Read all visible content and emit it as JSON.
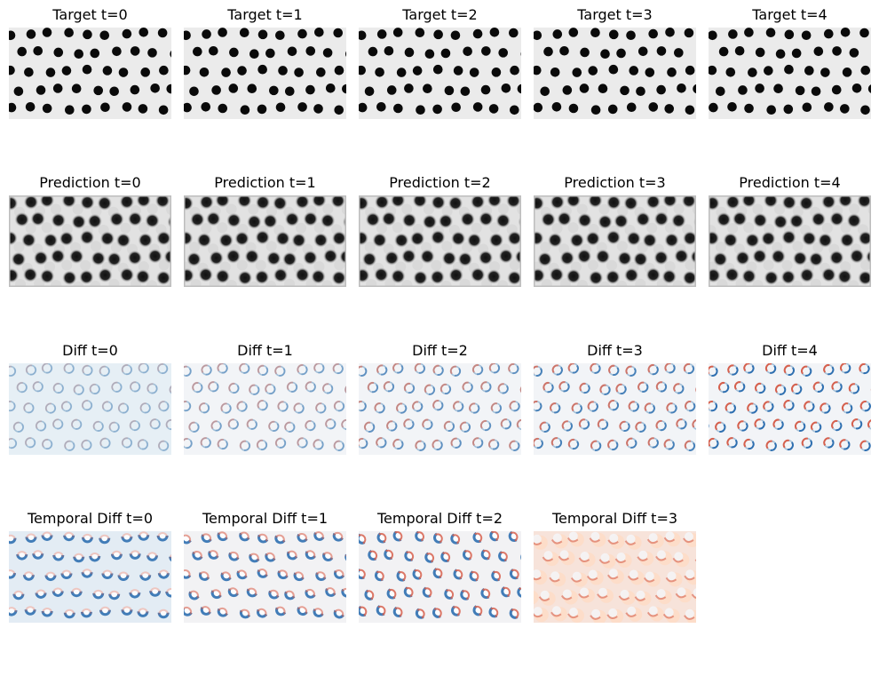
{
  "rows": [
    {
      "kind": "target",
      "panels": [
        {
          "title": "Target t=0"
        },
        {
          "title": "Target t=1"
        },
        {
          "title": "Target t=2"
        },
        {
          "title": "Target t=3"
        },
        {
          "title": "Target t=4"
        }
      ]
    },
    {
      "kind": "prediction",
      "panels": [
        {
          "title": "Prediction t=0"
        },
        {
          "title": "Prediction t=1"
        },
        {
          "title": "Prediction t=2"
        },
        {
          "title": "Prediction t=3"
        },
        {
          "title": "Prediction t=4"
        }
      ]
    },
    {
      "kind": "diff",
      "panels": [
        {
          "title": "Diff t=0"
        },
        {
          "title": "Diff t=1"
        },
        {
          "title": "Diff t=2"
        },
        {
          "title": "Diff t=3"
        },
        {
          "title": "Diff t=4"
        }
      ]
    },
    {
      "kind": "temporal",
      "panels": [
        {
          "title": "Temporal Diff t=0"
        },
        {
          "title": "Temporal Diff t=1"
        },
        {
          "title": "Temporal Diff t=2"
        },
        {
          "title": "Temporal Diff t=3"
        }
      ]
    }
  ],
  "colors": {
    "target_bg": "#ebebeb",
    "target_dot": "#0a0a0a",
    "prediction_bg": "#e2e2e2",
    "prediction_dot": "#1a1a1a",
    "diff_bg": "#f2f4f7",
    "red": "#d6604d",
    "blue": "#2166ac",
    "light_blue": "#d1e5f0",
    "light_red": "#fddbc7"
  }
}
